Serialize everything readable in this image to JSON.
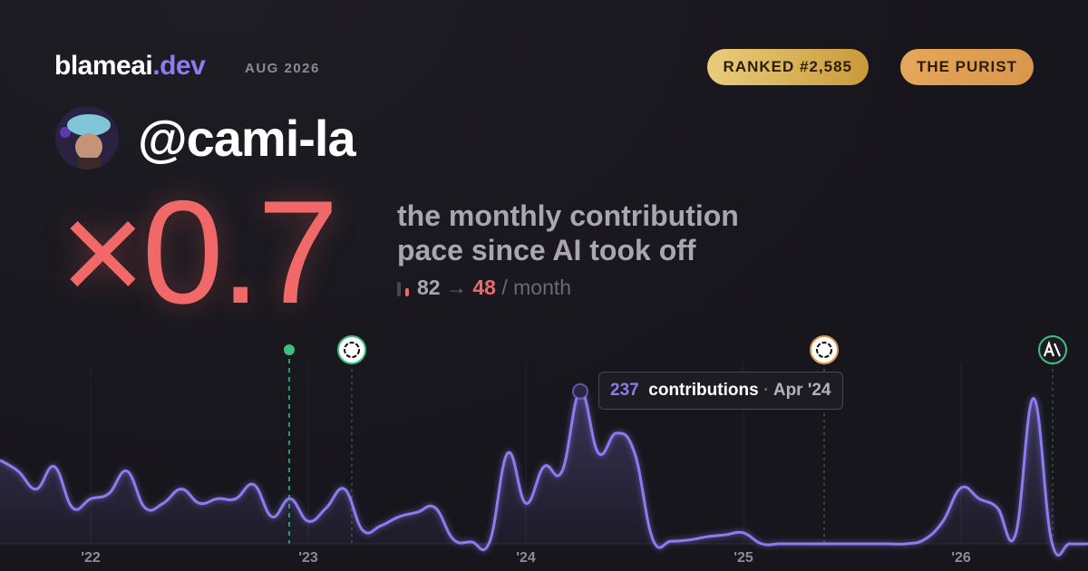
{
  "brand": {
    "name": "blameai",
    "tld": ".dev",
    "date": "AUG 2026"
  },
  "badges": [
    "RANKED #2,585",
    "THE PURIST"
  ],
  "handle": "@cami-la",
  "multiplier": "×0.7",
  "tagline": [
    "the monthly contribution",
    "pace since AI took off"
  ],
  "pace": {
    "from": 82,
    "arrow": "→",
    "to": 48,
    "unit": "/ month"
  },
  "tooltip": {
    "unit": "contributions",
    "separator": "·",
    "date": "Apr '24"
  },
  "chart_data": {
    "type": "area",
    "color": "#8b7cf0",
    "grid": true,
    "ylim": [
      0,
      300
    ],
    "categories": [
      null,
      null,
      null,
      null,
      null,
      "'22",
      null,
      null,
      null,
      null,
      null,
      null,
      null,
      null,
      null,
      null,
      null,
      "'23",
      null,
      null,
      null,
      null,
      null,
      null,
      null,
      null,
      null,
      null,
      null,
      "'24",
      null,
      null,
      null,
      null,
      null,
      null,
      null,
      null,
      null,
      null,
      null,
      "'25",
      null,
      null,
      null,
      null,
      null,
      null,
      null,
      null,
      null,
      null,
      null,
      "'26",
      null,
      null,
      null,
      null,
      null,
      null,
      null
    ],
    "values": [
      130,
      113,
      85,
      120,
      56,
      70,
      78,
      113,
      56,
      63,
      85,
      63,
      70,
      70,
      92,
      42,
      70,
      35,
      56,
      85,
      21,
      28,
      42,
      49,
      56,
      7,
      3,
      3,
      141,
      63,
      120,
      113,
      237,
      141,
      172,
      141,
      7,
      4,
      6,
      11,
      14,
      17,
      0,
      0,
      0,
      0,
      0,
      0,
      0,
      0,
      0,
      7,
      35,
      87,
      70,
      56,
      14,
      226,
      3,
      0,
      0
    ]
  }
}
